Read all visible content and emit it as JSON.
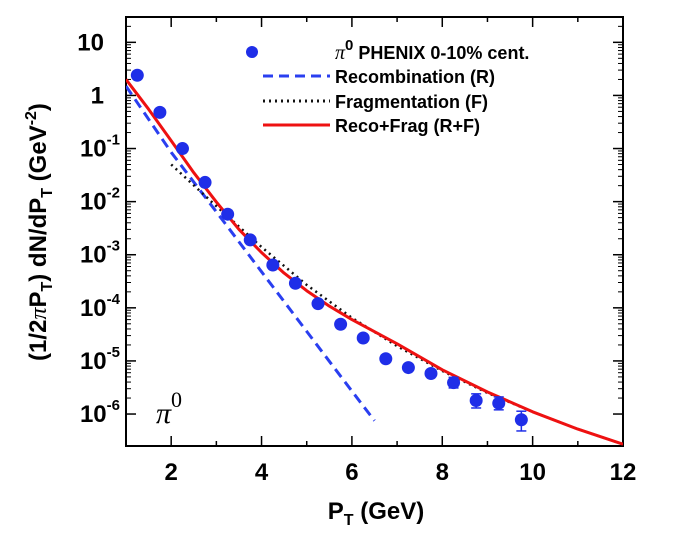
{
  "chart_data": {
    "type": "scatter",
    "xlabel": "P_T (GeV)",
    "xlabel_parts": {
      "main": "P",
      "sub": "T",
      "rest": " (GeV)"
    },
    "ylabel": "(1/2πP_T) dN/dP_T (GeV^-2)",
    "ylabel_parts": {
      "open": "(1/2",
      "pi": "π",
      "p": "P",
      "sub1": "T",
      "mid": ") dN/dP",
      "sub2": "T",
      "unit": " (GeV",
      "sup": "-2",
      "close": ")"
    },
    "xlim": [
      1,
      12
    ],
    "ylim": [
      2.5e-07,
      30
    ],
    "y_scale": "log",
    "x_ticks": [
      2,
      4,
      6,
      8,
      10,
      12
    ],
    "x_tick_labels": [
      "2",
      "4",
      "6",
      "8",
      "10",
      "12"
    ],
    "y_ticks": [
      10,
      1,
      0.1,
      0.01,
      0.001,
      0.0001,
      1e-05,
      1e-06
    ],
    "y_tick_labels": [
      {
        "base": "10",
        "exp": ""
      },
      {
        "base": "1",
        "exp": ""
      },
      {
        "base": "10",
        "exp": "-1"
      },
      {
        "base": "10",
        "exp": "-2"
      },
      {
        "base": "10",
        "exp": "-3"
      },
      {
        "base": "10",
        "exp": "-4"
      },
      {
        "base": "10",
        "exp": "-5"
      },
      {
        "base": "10",
        "exp": "-6"
      }
    ],
    "annotation": {
      "text": "π",
      "sup": "0",
      "position": "bottom-left"
    },
    "legend_position": "top-right",
    "series": [
      {
        "name": "π0 PHENIX 0-10% cent.",
        "legend_label": {
          "pi": "π",
          "sup": "0",
          "rest": " PHENIX 0-10% cent."
        },
        "kind": "points",
        "color": "#1f2ee8",
        "x": [
          1.25,
          1.75,
          2.25,
          2.75,
          3.25,
          3.75,
          4.25,
          4.75,
          5.25,
          5.75,
          6.25,
          6.75,
          7.25,
          7.75,
          8.25,
          8.75,
          9.25,
          9.75
        ],
        "y": [
          2.4,
          0.48,
          0.1,
          0.023,
          0.0058,
          0.0019,
          0.00064,
          0.00029,
          0.00012,
          4.9e-05,
          2.7e-05,
          1.1e-05,
          7.5e-06,
          5.8e-06,
          3.9e-06,
          1.8e-06,
          1.6e-06,
          7.8e-07
        ],
        "err_high": [
          0,
          0,
          0,
          0,
          0,
          0,
          0,
          0,
          0,
          0,
          0,
          0,
          0,
          0,
          1e-06,
          6e-07,
          5e-07,
          3.5e-07
        ],
        "err_low": [
          0,
          0,
          0,
          0,
          0,
          0,
          0,
          0,
          0,
          0,
          0,
          0,
          0,
          0,
          8e-07,
          5e-07,
          4e-07,
          3e-07
        ]
      },
      {
        "name": "Recombination (R)",
        "kind": "line",
        "style": "dashed",
        "color": "#2a3ff0",
        "x": [
          1.0,
          2.0,
          3.0,
          4.0,
          5.0,
          6.0,
          6.5
        ],
        "y": [
          1.5,
          0.085,
          0.0064,
          0.00048,
          3.6e-05,
          2.7e-06,
          7.5e-07
        ]
      },
      {
        "name": "Fragmentation (F)",
        "kind": "line",
        "style": "dotted",
        "color": "#111111",
        "x": [
          2.0,
          3.0,
          4.0,
          5.0,
          6.0,
          7.0,
          8.0,
          9.0,
          10.0,
          11.0,
          12.0
        ],
        "y": [
          0.05,
          0.0082,
          0.0014,
          0.00027,
          6.5e-05,
          1.9e-05,
          6.5e-06,
          2.5e-06,
          1.1e-06,
          5.2e-07,
          2.7e-07
        ]
      },
      {
        "name": "Reco+Frag (R+F)",
        "kind": "line",
        "style": "solid",
        "color": "#ee1111",
        "x": [
          1.0,
          1.5,
          2.0,
          2.5,
          3.0,
          3.5,
          4.0,
          4.5,
          5.0,
          5.5,
          6.0,
          7.0,
          8.0,
          9.0,
          10.0,
          11.0,
          12.0
        ],
        "y": [
          2.0,
          0.55,
          0.14,
          0.035,
          0.0098,
          0.003,
          0.0011,
          0.00045,
          0.00021,
          0.000108,
          6e-05,
          2.1e-05,
          6.8e-06,
          2.6e-06,
          1.1e-06,
          5.2e-07,
          2.7e-07
        ]
      }
    ]
  }
}
